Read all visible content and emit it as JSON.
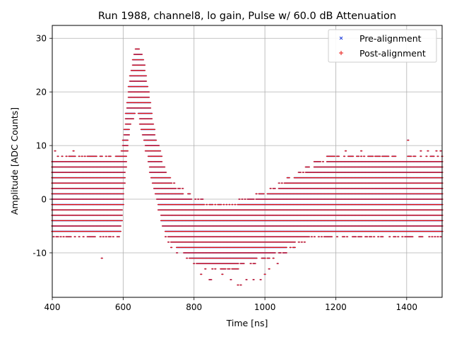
{
  "chart_data": {
    "type": "scatter",
    "title": "Run 1988, channel8, lo gain, Pulse w/ 60.0 dB Attenuation",
    "xlabel": "Time [ns]",
    "ylabel": "Amplitude [ADC Counts]",
    "xlim": [
      400,
      1500
    ],
    "ylim": [
      -18.3,
      32.4
    ],
    "xticks": [
      400,
      600,
      800,
      1000,
      1200,
      1400
    ],
    "yticks": [
      -10,
      0,
      10,
      20,
      30
    ],
    "grid": true,
    "legend_position": "top-right",
    "sampling_step_ns": 4,
    "baseline_noise_range": [
      -7,
      8
    ],
    "pulse_envelope": {
      "x": [
        400,
        590,
        600,
        610,
        620,
        630,
        640,
        650,
        660,
        670,
        680,
        690,
        700,
        710,
        720,
        740,
        760,
        780,
        800,
        850,
        900,
        950,
        1000,
        1050,
        1100,
        1150,
        1200,
        1300,
        1400,
        1500
      ],
      "low": [
        -7,
        -7,
        -2,
        8,
        13,
        16,
        16,
        14,
        11,
        7,
        4,
        1,
        -2,
        -5,
        -7,
        -9,
        -10,
        -11,
        -12,
        -13,
        -13,
        -12,
        -11,
        -10,
        -8,
        -7,
        -7,
        -7,
        -7,
        -7
      ],
      "high": [
        8,
        8,
        11,
        17,
        24,
        27,
        28,
        27,
        25,
        21,
        17,
        13,
        10,
        7,
        5,
        3,
        2,
        1,
        0,
        -1,
        -1,
        0,
        1,
        3,
        5,
        7,
        8,
        8,
        8,
        8
      ]
    },
    "outliers": [
      {
        "x": 408,
        "y": 9
      },
      {
        "x": 460,
        "y": 9
      },
      {
        "x": 540,
        "y": -11
      },
      {
        "x": 1404,
        "y": 11
      },
      {
        "x": 1440,
        "y": 9
      },
      {
        "x": 1460,
        "y": 9
      },
      {
        "x": 1484,
        "y": 9
      },
      {
        "x": 1496,
        "y": 9
      },
      {
        "x": 1228,
        "y": 9
      },
      {
        "x": 1272,
        "y": 9
      },
      {
        "x": 820,
        "y": -14
      },
      {
        "x": 844,
        "y": -15
      },
      {
        "x": 848,
        "y": -15
      },
      {
        "x": 904,
        "y": -15
      },
      {
        "x": 924,
        "y": -16
      },
      {
        "x": 932,
        "y": -16
      },
      {
        "x": 948,
        "y": -15
      },
      {
        "x": 968,
        "y": -15
      },
      {
        "x": 988,
        "y": -15
      },
      {
        "x": 880,
        "y": -14
      },
      {
        "x": 1000,
        "y": -14
      },
      {
        "x": 1012,
        "y": -13
      },
      {
        "x": 1036,
        "y": -12
      }
    ],
    "series": [
      {
        "name": "Pre-alignment",
        "color": "#1f3fdc",
        "marker": "x"
      },
      {
        "name": "Post-alignment",
        "color": "#e8120c",
        "marker": "+"
      }
    ]
  }
}
